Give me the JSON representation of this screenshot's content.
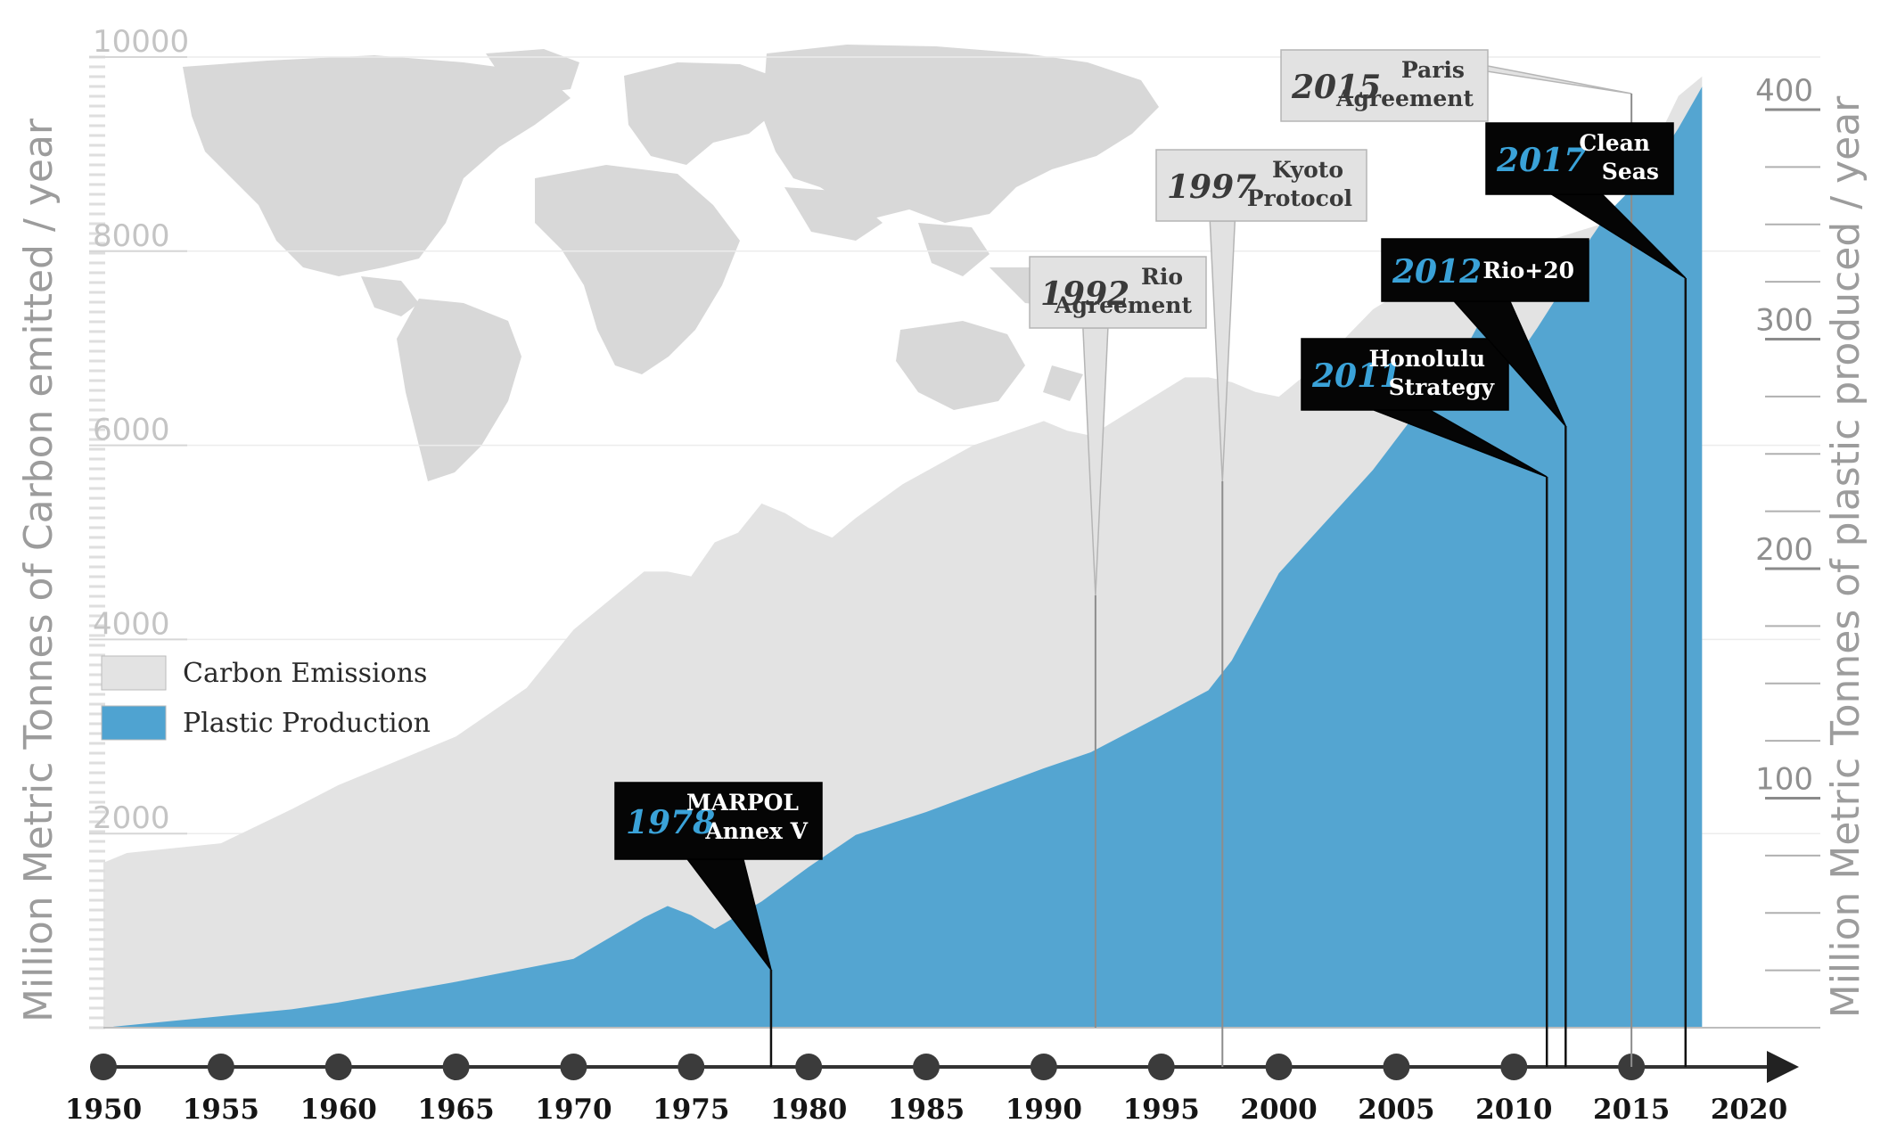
{
  "chart_data": {
    "type": "area",
    "title": "",
    "ylabel": "Million Metric Tonnes of Carbon emitted  / year",
    "y2label": "Million Metric Tonnes of plastic produced / year",
    "xlim": [
      1950,
      2020
    ],
    "ylim": [
      0,
      10000
    ],
    "y2lim": [
      0,
      400
    ],
    "x_ticks": [
      "1950",
      "1955",
      "1960",
      "1965",
      "1970",
      "1975",
      "1980",
      "1985",
      "1990",
      "1995",
      "2000",
      "2005",
      "2010",
      "2015",
      "2020"
    ],
    "y_ticks": [
      "2000",
      "4000",
      "6000",
      "8000",
      "10000"
    ],
    "y2_ticks": [
      "100",
      "200",
      "300",
      "400"
    ],
    "legend": {
      "position": "left-middle",
      "items": [
        "Carbon Emissions",
        "Plastic Production"
      ]
    },
    "series": [
      {
        "name": "Carbon Emissions",
        "axis": "left",
        "color": "#e3e3e3",
        "x": [
          1950,
          1951,
          1953,
          1955,
          1958,
          1960,
          1962,
          1965,
          1968,
          1970,
          1973,
          1974,
          1975,
          1976,
          1977,
          1978,
          1979,
          1980,
          1981,
          1982,
          1984,
          1987,
          1990,
          1991,
          1992,
          1993,
          1994,
          1996,
          1997,
          1998,
          1999,
          2000,
          2002,
          2004,
          2006,
          2008,
          2010,
          2012,
          2014,
          2015,
          2016,
          2017,
          2018
        ],
        "values": [
          1700,
          1800,
          1850,
          1900,
          2250,
          2500,
          2700,
          3000,
          3500,
          4100,
          4700,
          4700,
          4650,
          5000,
          5100,
          5400,
          5300,
          5150,
          5050,
          5250,
          5600,
          6000,
          6250,
          6150,
          6100,
          6250,
          6400,
          6700,
          6700,
          6650,
          6550,
          6500,
          6900,
          7400,
          7700,
          7950,
          8000,
          8150,
          8300,
          8650,
          9100,
          9600,
          9800
        ]
      },
      {
        "name": "Plastic Production",
        "axis": "right",
        "color": "#4fa3d1",
        "x": [
          1950,
          1955,
          1958,
          1960,
          1965,
          1970,
          1973,
          1974,
          1975,
          1976,
          1978,
          1980,
          1982,
          1985,
          1990,
          1992,
          1995,
          1997,
          1998,
          2000,
          2004,
          2006,
          2008,
          2009,
          2010,
          2011,
          2012,
          2013,
          2014,
          2016,
          2017,
          2018
        ],
        "values": [
          0,
          5,
          8,
          11,
          20,
          30,
          48,
          53,
          49,
          43,
          55,
          70,
          84,
          94,
          113,
          120,
          136,
          147,
          160,
          198,
          243,
          270,
          297,
          316,
          290,
          305,
          321,
          340,
          355,
          376,
          392,
          410
        ]
      }
    ],
    "events": [
      {
        "year": "1978",
        "label": [
          "MARPOL",
          "Annex V"
        ],
        "x": 1978.4,
        "style": "dark"
      },
      {
        "year": "1992",
        "label": [
          "Rio",
          "Agreement"
        ],
        "x": 1992.2,
        "style": "light"
      },
      {
        "year": "1997",
        "label": [
          "Kyoto",
          "Protocol"
        ],
        "x": 1997.6,
        "style": "light"
      },
      {
        "year": "2011",
        "label": [
          "Honolulu",
          "Strategy"
        ],
        "x": 2011.4,
        "style": "dark"
      },
      {
        "year": "2012",
        "label": [
          "Rio+20"
        ],
        "x": 2012.2,
        "style": "dark"
      },
      {
        "year": "2015",
        "label": [
          "Paris",
          "Agreement"
        ],
        "x": 2015.0,
        "style": "light"
      },
      {
        "year": "2017",
        "label": [
          "Clean",
          "Seas"
        ],
        "x": 2017.3,
        "style": "dark"
      }
    ]
  }
}
